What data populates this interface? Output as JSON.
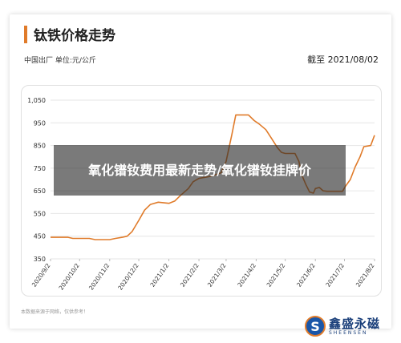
{
  "header": {
    "title": "钛铁价格走势",
    "subtitle": "中国出厂  单位:元/公斤",
    "date": "截至 2021/08/02"
  },
  "footer": {
    "disclaimer": "本数据来源于网络，仅供参考！",
    "logo_cn": "鑫盛永磁",
    "logo_en": "SHEENSEN",
    "logo_mark": "S"
  },
  "overlay": {
    "text": "氧化镨钕费用最新走势/氧化镨钕挂牌价"
  },
  "colors": {
    "line": "#e07b2a",
    "accent": "#e07b2a",
    "brand": "#1a56a8"
  },
  "chart_data": {
    "type": "line",
    "title": "钛铁价格走势",
    "ylim": [
      350,
      1050
    ],
    "yticks": [
      350,
      450,
      550,
      650,
      750,
      850,
      950,
      1050
    ],
    "ytick_labels": [
      "350",
      "450",
      "550",
      "650",
      "750",
      "850",
      "950",
      "1,050"
    ],
    "xticks": [
      "2020/9/2",
      "2020/10/2",
      "2020/11/2",
      "2020/12/2",
      "2021/1/2",
      "2021/2/2",
      "2021/3/2",
      "2021/4/2",
      "2021/5/2",
      "2021/6/2",
      "2021/7/2",
      "2021/8/2"
    ],
    "grid": true,
    "series": [
      {
        "points": [
          [
            "2020-09-02",
            445
          ],
          [
            "2020-09-20",
            445
          ],
          [
            "2020-09-25",
            440
          ],
          [
            "2020-10-12",
            440
          ],
          [
            "2020-10-18",
            435
          ],
          [
            "2020-11-02",
            435
          ],
          [
            "2020-11-08",
            440
          ],
          [
            "2020-11-15",
            445
          ],
          [
            "2020-11-20",
            450
          ],
          [
            "2020-11-25",
            470
          ],
          [
            "2020-12-02",
            520
          ],
          [
            "2020-12-08",
            565
          ],
          [
            "2020-12-14",
            590
          ],
          [
            "2020-12-22",
            600
          ],
          [
            "2021-01-02",
            595
          ],
          [
            "2021-01-08",
            605
          ],
          [
            "2021-01-14",
            630
          ],
          [
            "2021-01-22",
            660
          ],
          [
            "2021-01-27",
            690
          ],
          [
            "2021-02-02",
            705
          ],
          [
            "2021-02-15",
            715
          ],
          [
            "2021-02-25",
            730
          ],
          [
            "2021-03-02",
            780
          ],
          [
            "2021-03-08",
            900
          ],
          [
            "2021-03-12",
            985
          ],
          [
            "2021-03-25",
            985
          ],
          [
            "2021-03-31",
            960
          ],
          [
            "2021-04-05",
            945
          ],
          [
            "2021-04-12",
            920
          ],
          [
            "2021-04-18",
            880
          ],
          [
            "2021-04-24",
            840
          ],
          [
            "2021-04-28",
            820
          ],
          [
            "2021-05-02",
            815
          ],
          [
            "2021-05-12",
            815
          ],
          [
            "2021-05-16",
            780
          ],
          [
            "2021-05-19",
            720
          ],
          [
            "2021-05-23",
            680
          ],
          [
            "2021-05-27",
            645
          ],
          [
            "2021-05-31",
            640
          ],
          [
            "2021-06-02",
            660
          ],
          [
            "2021-06-06",
            665
          ],
          [
            "2021-06-10",
            650
          ],
          [
            "2021-06-14",
            648
          ],
          [
            "2021-06-30",
            648
          ],
          [
            "2021-07-03",
            670
          ],
          [
            "2021-07-08",
            700
          ],
          [
            "2021-07-13",
            755
          ],
          [
            "2021-07-18",
            800
          ],
          [
            "2021-07-22",
            845
          ],
          [
            "2021-07-29",
            850
          ],
          [
            "2021-08-02",
            895
          ]
        ]
      }
    ]
  }
}
